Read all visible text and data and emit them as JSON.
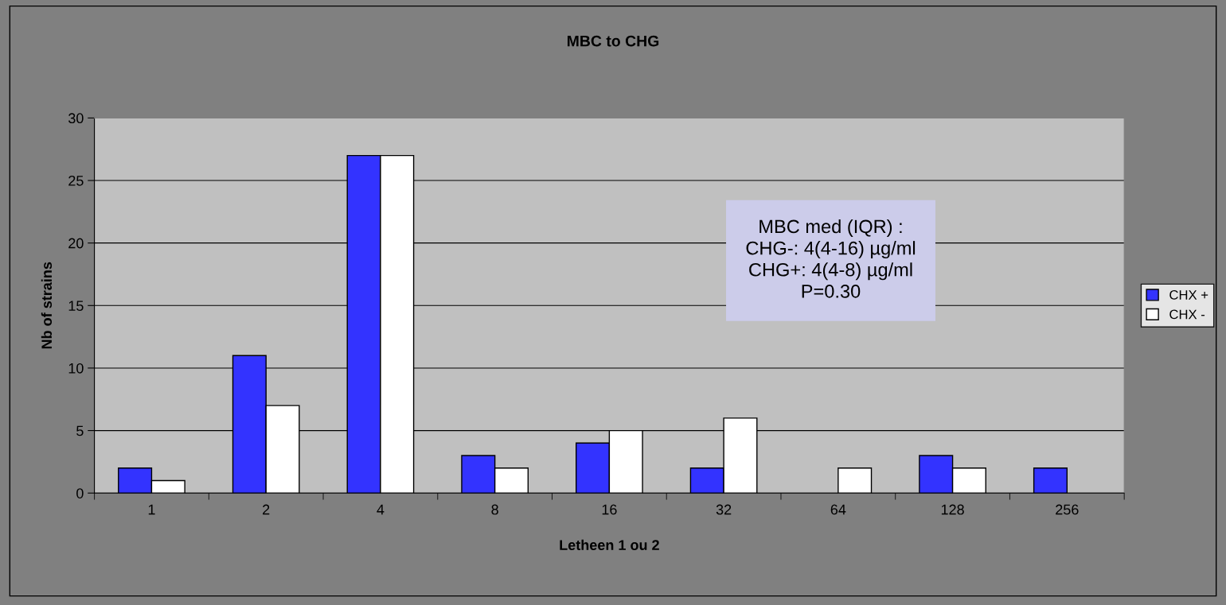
{
  "chart_data": {
    "type": "bar",
    "title": "MBC to CHG",
    "xlabel": "Letheen 1 ou 2",
    "ylabel": "Nb of strains",
    "categories": [
      "1",
      "2",
      "4",
      "8",
      "16",
      "32",
      "64",
      "128",
      "256"
    ],
    "series": [
      {
        "name": "CHX +",
        "color": "#3333ff",
        "values": [
          2,
          11,
          27,
          3,
          4,
          2,
          null,
          3,
          2
        ]
      },
      {
        "name": "CHX -",
        "color": "#ffffff",
        "values": [
          1,
          7,
          27,
          2,
          5,
          6,
          2,
          2,
          null
        ]
      }
    ],
    "ylim": [
      0,
      30
    ],
    "yticks": [
      0,
      5,
      10,
      15,
      20,
      25,
      30
    ],
    "grid": "y",
    "legend": "right",
    "annotations": [
      "MBC med (IQR) :\nCHG-: 4(4-16) µg/ml\nCHG+: 4(4-8) µg/ml\nP=0.30"
    ]
  }
}
